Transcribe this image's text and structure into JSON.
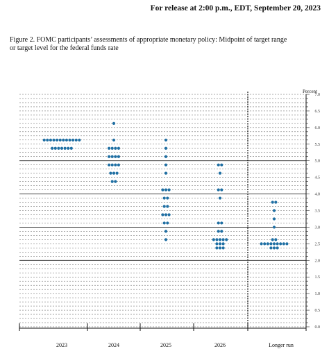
{
  "header": {
    "release": "For release at 2:00 p.m., EDT, September 20, 2023"
  },
  "figure": {
    "caption_line1": "Figure 2.  FOMC participants’ assessments of appropriate monetary policy:  Midpoint of target range",
    "caption_line2": "or target level for the federal funds rate"
  },
  "chart_data": {
    "type": "scatter",
    "title": "",
    "xlabel": "",
    "ylabel": "Percent",
    "ylim": [
      0.0,
      7.0
    ],
    "ytick_step": 0.125,
    "ytick_labels": [
      "0.0",
      "0.5",
      "1.0",
      "1.5",
      "2.0",
      "2.5",
      "3.0",
      "3.5",
      "4.0",
      "4.5",
      "5.0",
      "5.5",
      "6.0",
      "6.5",
      "7.0"
    ],
    "solid_gridlines": [
      2.0,
      3.0,
      4.0,
      5.0
    ],
    "grid": true,
    "dot_color": "#1f6fa3",
    "categories": [
      "2023",
      "2024",
      "2025",
      "2026",
      "Longer run"
    ],
    "divider_after_index": 3,
    "points": [
      {
        "x": "2023",
        "y": 5.625,
        "count": 12
      },
      {
        "x": "2023",
        "y": 5.375,
        "count": 7
      },
      {
        "x": "2024",
        "y": 6.125,
        "count": 1
      },
      {
        "x": "2024",
        "y": 5.625,
        "count": 1
      },
      {
        "x": "2024",
        "y": 5.375,
        "count": 4
      },
      {
        "x": "2024",
        "y": 5.125,
        "count": 4
      },
      {
        "x": "2024",
        "y": 4.875,
        "count": 4
      },
      {
        "x": "2024",
        "y": 4.625,
        "count": 3
      },
      {
        "x": "2024",
        "y": 4.375,
        "count": 2
      },
      {
        "x": "2025",
        "y": 5.625,
        "count": 1
      },
      {
        "x": "2025",
        "y": 5.375,
        "count": 1
      },
      {
        "x": "2025",
        "y": 5.125,
        "count": 1
      },
      {
        "x": "2025",
        "y": 4.875,
        "count": 1
      },
      {
        "x": "2025",
        "y": 4.625,
        "count": 1
      },
      {
        "x": "2025",
        "y": 4.125,
        "count": 3
      },
      {
        "x": "2025",
        "y": 3.875,
        "count": 2
      },
      {
        "x": "2025",
        "y": 3.625,
        "count": 2
      },
      {
        "x": "2025",
        "y": 3.375,
        "count": 3
      },
      {
        "x": "2025",
        "y": 3.125,
        "count": 2
      },
      {
        "x": "2025",
        "y": 2.875,
        "count": 1
      },
      {
        "x": "2025",
        "y": 2.625,
        "count": 1
      },
      {
        "x": "2026",
        "y": 4.875,
        "count": 2
      },
      {
        "x": "2026",
        "y": 4.625,
        "count": 1
      },
      {
        "x": "2026",
        "y": 4.125,
        "count": 2
      },
      {
        "x": "2026",
        "y": 3.875,
        "count": 1
      },
      {
        "x": "2026",
        "y": 3.125,
        "count": 2
      },
      {
        "x": "2026",
        "y": 2.875,
        "count": 2
      },
      {
        "x": "2026",
        "y": 2.625,
        "count": 5
      },
      {
        "x": "2026",
        "y": 2.5,
        "count": 3
      },
      {
        "x": "2026",
        "y": 2.375,
        "count": 3
      },
      {
        "x": "Longer run",
        "y": 3.75,
        "count": 2
      },
      {
        "x": "Longer run",
        "y": 3.5,
        "count": 1
      },
      {
        "x": "Longer run",
        "y": 3.25,
        "count": 1
      },
      {
        "x": "Longer run",
        "y": 3.0,
        "count": 1
      },
      {
        "x": "Longer run",
        "y": 2.625,
        "count": 2
      },
      {
        "x": "Longer run",
        "y": 2.5,
        "count": 9
      },
      {
        "x": "Longer run",
        "y": 2.375,
        "count": 3
      }
    ]
  }
}
